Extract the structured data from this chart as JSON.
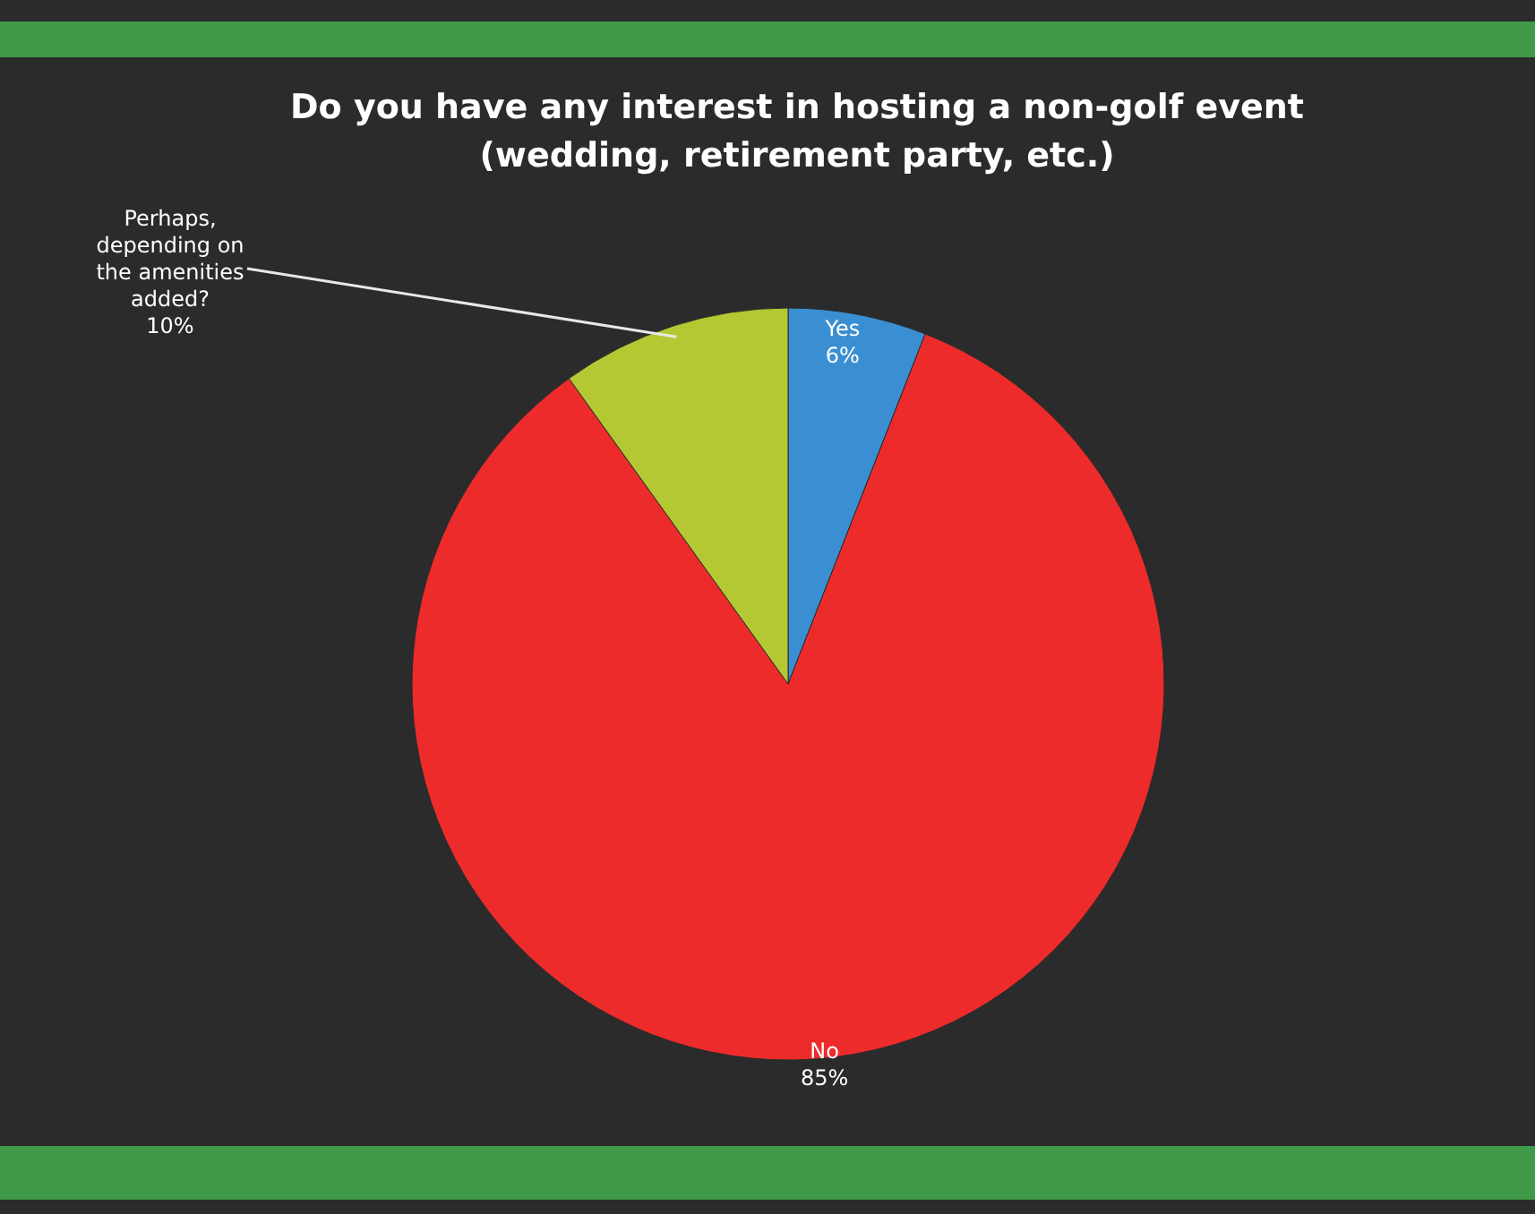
{
  "chart_data": {
    "type": "pie",
    "title": "Do you have any interest in hosting a non-golf event (wedding, retirement party, etc.)",
    "categories": [
      "Yes",
      "No",
      "Perhaps, depending on the amenities added?"
    ],
    "values": [
      6,
      85,
      10
    ],
    "value_labels": [
      "6%",
      "85%",
      "10%"
    ],
    "colors": [
      "#3a8fd2",
      "#ee2b2b",
      "#b4c834"
    ]
  }
}
